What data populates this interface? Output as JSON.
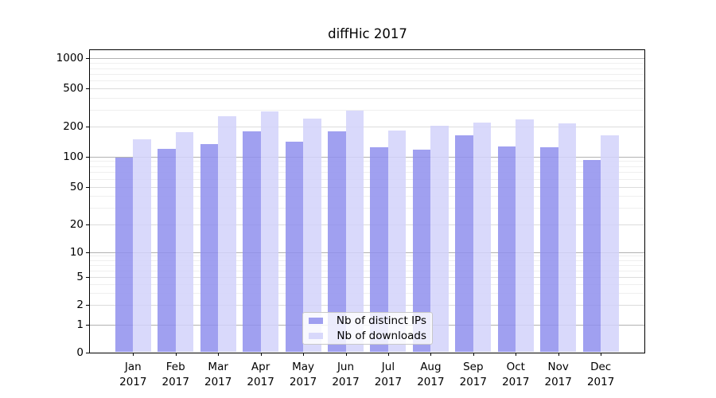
{
  "figure": {
    "title": "diffHic 2017"
  },
  "chart_data": {
    "type": "bar",
    "title": "diffHic 2017",
    "categories": [
      "Jan",
      "Feb",
      "Mar",
      "Apr",
      "May",
      "Jun",
      "Jul",
      "Aug",
      "Sep",
      "Oct",
      "Nov",
      "Dec"
    ],
    "category_year": "2017",
    "series": [
      {
        "name": "Nb of distinct IPs",
        "color": "#8f8fed",
        "values": [
          97,
          120,
          133,
          178,
          141,
          179,
          124,
          118,
          162,
          126,
          123,
          93
        ]
      },
      {
        "name": "Nb of downloads",
        "color": "#d2d2fa",
        "values": [
          150,
          177,
          259,
          287,
          244,
          294,
          184,
          202,
          220,
          239,
          215,
          162
        ]
      }
    ],
    "xlabel": "",
    "ylabel": "",
    "y_scale": "log-like with 0 baseline",
    "ylim": [
      0,
      1250
    ],
    "y_ticks": [
      0,
      1,
      2,
      5,
      10,
      20,
      50,
      100,
      200,
      500,
      1000
    ],
    "y_minor_ticks": [
      3,
      4,
      6,
      7,
      8,
      9,
      30,
      40,
      60,
      70,
      80,
      90,
      300,
      400,
      600,
      700,
      800,
      900
    ],
    "grid": true,
    "grid_color_decade": "#b2b2b2",
    "grid_color_major": "#dcdcdc",
    "grid_color_minor": "#efefef",
    "legend_position": "bottom-center",
    "legend": [
      "Nb of distinct IPs",
      "Nb of downloads"
    ]
  }
}
